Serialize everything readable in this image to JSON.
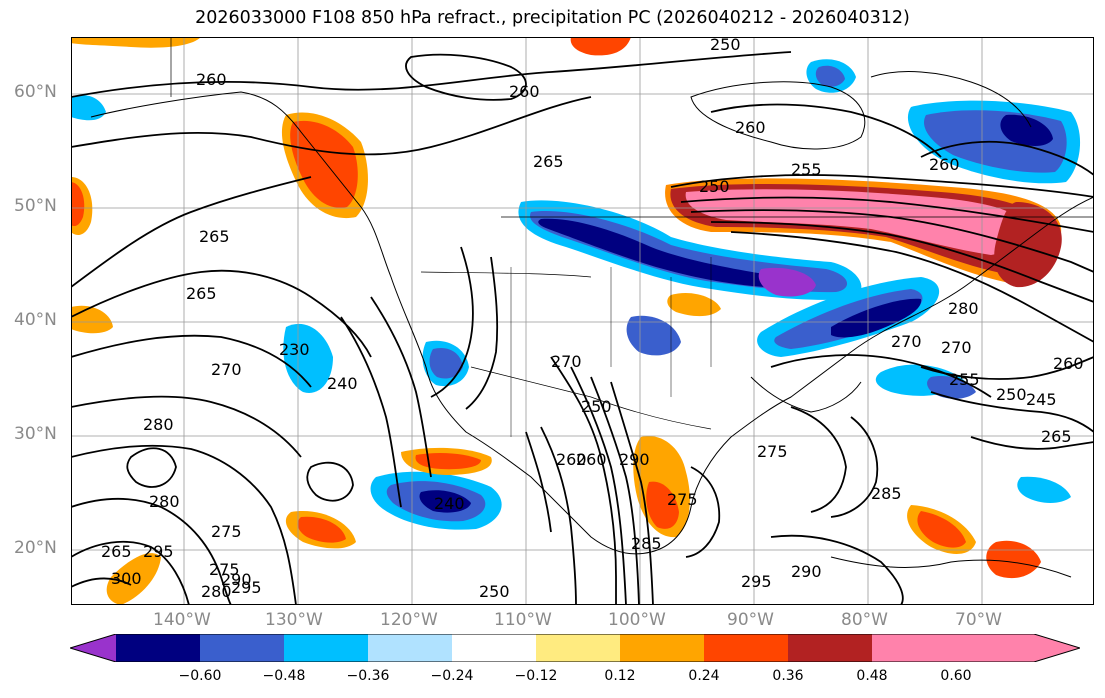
{
  "title": "2026033000 F108 850 hPa refract., precipitation PC (2026040212 - 2026040312)",
  "map": {
    "lat_labels": [
      "60°N",
      "50°N",
      "40°N",
      "30°N",
      "20°N"
    ],
    "lon_labels": [
      "140°W",
      "130°W",
      "120°W",
      "110°W",
      "100°W",
      "90°W",
      "80°W",
      "70°W"
    ],
    "contour_labels": [
      "260",
      "260",
      "265",
      "265",
      "265",
      "260",
      "255",
      "250",
      "260",
      "250",
      "270",
      "280",
      "275",
      "270",
      "230",
      "240",
      "270",
      "250",
      "260",
      "290",
      "275",
      "285",
      "255",
      "250",
      "245",
      "260",
      "265",
      "280",
      "240",
      "275",
      "280",
      "295",
      "300",
      "265",
      "270",
      "275",
      "280",
      "290",
      "295",
      "250",
      "260",
      "295",
      "290",
      "285"
    ]
  },
  "colorbar": {
    "colors": [
      "#9933cc",
      "#000080",
      "#3a5fcd",
      "#00bfff",
      "#b0e2ff",
      "#ffffff",
      "#ffeb80",
      "#ffa500",
      "#ff4500",
      "#b22222",
      "#ff82ab"
    ],
    "tick_labels": [
      "−0.60",
      "−0.48",
      "−0.36",
      "−0.24",
      "−0.12",
      "0.12",
      "0.24",
      "0.36",
      "0.48",
      "0.60"
    ]
  }
}
